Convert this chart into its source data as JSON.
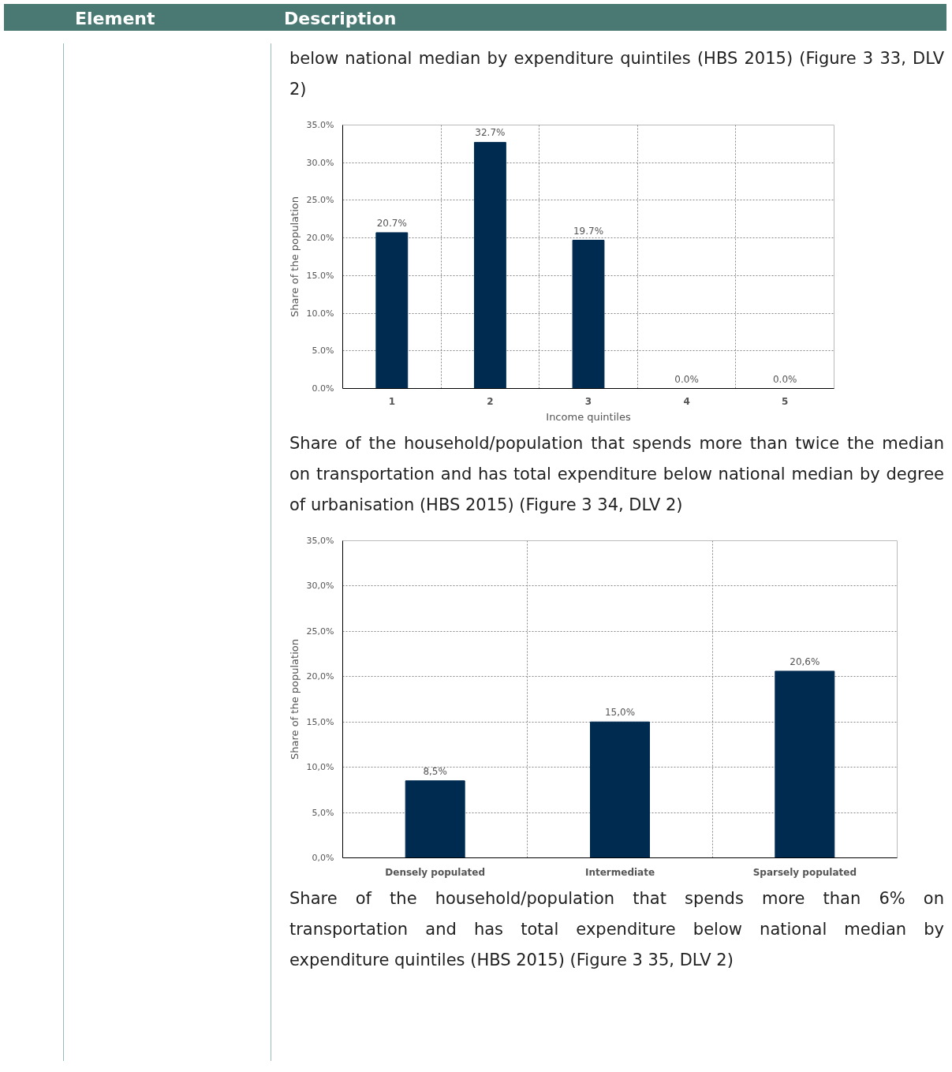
{
  "chart_data": [
    {
      "type": "bar",
      "title": "below national median by expenditure quintiles (HBS 2015) (Figure 3 33, DLV 2)",
      "annotations": [
        "Element",
        "Description"
      ],
      "categories": [
        "1",
        "2",
        "3",
        "4",
        "5"
      ],
      "values": [
        20.7,
        32.7,
        19.7,
        0.0,
        0.0
      ],
      "color": "#002b50",
      "value_labels": [
        "20.7%",
        "32.7%",
        "19.7%",
        "0.0%",
        "0.0%"
      ],
      "xlabel": "Income quintiles",
      "ylabel": "Share of the population",
      "ylim": [
        0,
        35
      ],
      "yticks": [
        {
          "value": 0,
          "label": "0.0%"
        },
        {
          "value": 5,
          "label": "5.0%"
        },
        {
          "value": 10,
          "label": "10.0%"
        },
        {
          "value": 15,
          "label": "15.0%"
        },
        {
          "value": 20,
          "label": "20.0%"
        },
        {
          "value": 25,
          "label": "25.0%"
        },
        {
          "value": 30,
          "label": "30.0%"
        },
        {
          "value": 35,
          "label": "35.0%"
        }
      ],
      "grid": true
    },
    {
      "type": "bar",
      "title": "Share of the household/population that spends more than twice the median on transportation and has total expenditure below national median by degree of urbanisation (HBS 2015) (Figure 3 34, DLV 2)",
      "annotations": [
        "Share of the household/population that spends more than 6% on transportation and has total expenditure below national median by expenditure quintiles (HBS 2015)  (Figure 3 35, DLV 2)"
      ],
      "categories": [
        "Densely populated",
        "Intermediate",
        "Sparsely populated"
      ],
      "values": [
        8.5,
        15.0,
        20.6
      ],
      "color": "#002b50",
      "value_labels": [
        "8,5%",
        "15,0%",
        "20,6%"
      ],
      "ylabel": "Share of the population",
      "ylim": [
        0,
        35
      ],
      "yticks": [
        {
          "value": 0,
          "label": "0,0%"
        },
        {
          "value": 5,
          "label": "5,0%"
        },
        {
          "value": 10,
          "label": "10,0%"
        },
        {
          "value": 15,
          "label": "15,0%"
        },
        {
          "value": 20,
          "label": "20,0%"
        },
        {
          "value": 25,
          "label": "25,0%"
        },
        {
          "value": 30,
          "label": "30,0%"
        },
        {
          "value": 35,
          "label": "35,0%"
        }
      ],
      "grid": true
    }
  ]
}
